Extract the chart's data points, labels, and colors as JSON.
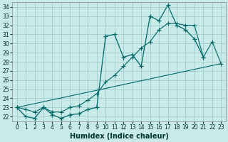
{
  "xlabel": "Humidex (Indice chaleur)",
  "background_color": "#c8eae8",
  "grid_color": "#9ecece",
  "line_color": "#006666",
  "xlim": [
    -0.5,
    23.5
  ],
  "ylim": [
    21.5,
    34.5
  ],
  "xticks": [
    0,
    1,
    2,
    3,
    4,
    5,
    6,
    7,
    8,
    9,
    10,
    11,
    12,
    13,
    14,
    15,
    16,
    17,
    18,
    19,
    20,
    21,
    22,
    23
  ],
  "yticks": [
    22,
    23,
    24,
    25,
    26,
    27,
    28,
    29,
    30,
    31,
    32,
    33,
    34
  ],
  "line1_x": [
    0,
    1,
    2,
    3,
    4,
    5,
    6,
    7,
    8,
    9,
    10,
    11,
    12,
    13,
    14,
    15,
    16,
    17,
    18,
    19,
    20,
    21
  ],
  "line1_y": [
    23.0,
    22.0,
    21.8,
    23.0,
    22.2,
    21.8,
    22.2,
    22.3,
    22.8,
    23.0,
    30.8,
    31.0,
    28.5,
    28.8,
    27.5,
    33.0,
    32.5,
    34.2,
    32.0,
    31.5,
    30.5,
    28.5
  ],
  "line2_x": [
    0,
    23
  ],
  "line2_y": [
    23.0,
    27.8
  ],
  "line3_x": [
    0,
    1,
    2,
    3,
    4,
    5,
    6,
    7,
    8,
    9,
    10,
    11,
    12,
    13,
    14,
    15,
    16,
    17,
    18,
    19,
    20,
    21,
    22,
    23
  ],
  "line3_y": [
    23.0,
    22.8,
    22.5,
    23.0,
    22.5,
    22.5,
    23.0,
    23.2,
    23.8,
    24.5,
    25.8,
    26.5,
    27.5,
    28.5,
    29.5,
    30.2,
    31.5,
    32.2,
    32.2,
    32.0,
    32.0,
    28.5,
    30.2,
    27.8
  ],
  "figsize": [
    3.2,
    2.0
  ],
  "dpi": 100,
  "tick_fontsize": 5.5,
  "xlabel_fontsize": 7
}
